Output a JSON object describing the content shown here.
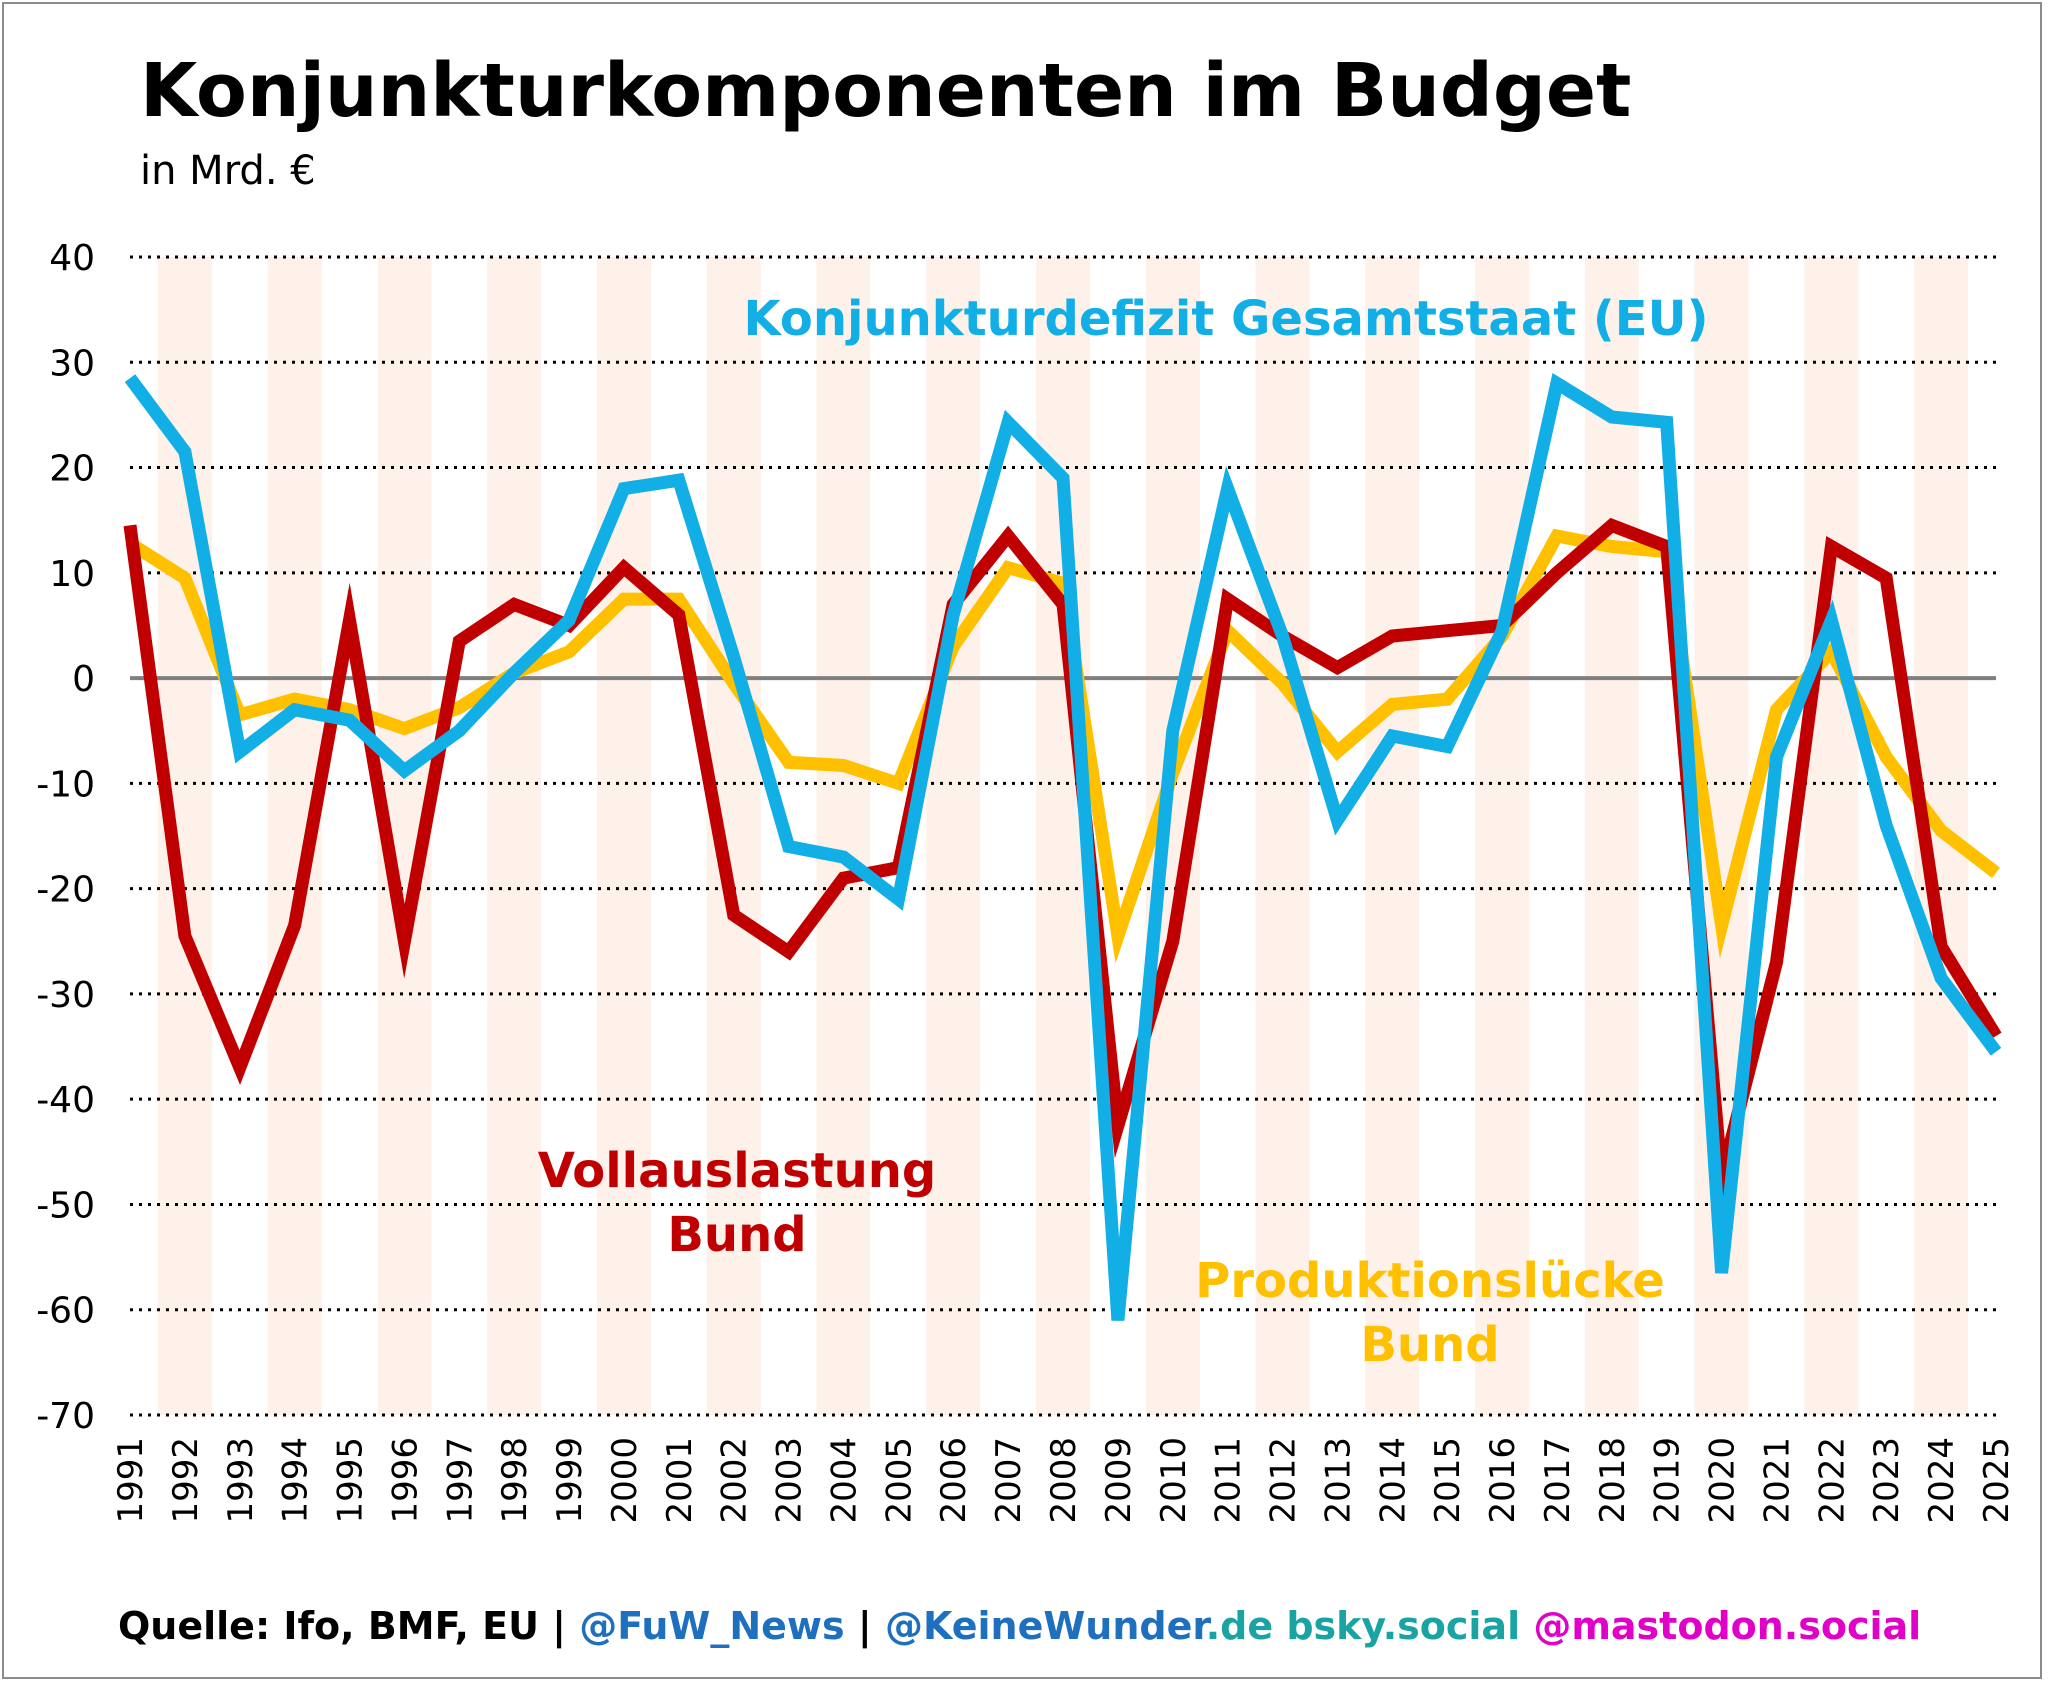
{
  "title": "Konjunkturkomponenten im Budget",
  "subtitle": "in Mrd. €",
  "footer": {
    "source": "Quelle: Ifo, BMF, EU | ",
    "handle1": "@FuW_News",
    "sep": " | ",
    "handle2": "@KeineWunder",
    "domain": ".de",
    "bsky": " bsky.social",
    "mastodon": " @mastodon.social",
    "colors": {
      "source": "#000000",
      "handle": "#1f6fbf",
      "domain": "#1aa3a3",
      "mastodon": "#e000c8"
    }
  },
  "chart_data": {
    "type": "line",
    "title": "Konjunkturkomponenten im Budget",
    "subtitle": "in Mrd. €",
    "xlabel": "",
    "ylabel": "",
    "ylim": [
      -70,
      40
    ],
    "yticks": [
      40,
      30,
      20,
      10,
      0,
      -10,
      -20,
      -30,
      -40,
      -50,
      -60,
      -70
    ],
    "grid": "horizontal dotted",
    "x": [
      "1991",
      "1992",
      "1993",
      "1994",
      "1995",
      "1996",
      "1997",
      "1998",
      "1999",
      "2000",
      "2001",
      "2002",
      "2003",
      "2004",
      "2005",
      "2006",
      "2007",
      "2008",
      "2009",
      "2010",
      "2011",
      "2012",
      "2013",
      "2014",
      "2015",
      "2016",
      "2017",
      "2018",
      "2019",
      "2020",
      "2021",
      "2022",
      "2023",
      "2024",
      "2025"
    ],
    "series": [
      {
        "name": "Produktionslücke\nBund",
        "label_lines": [
          "Produktionslücke",
          "Bund"
        ],
        "color": "#ffc000",
        "values": [
          12.8,
          9.5,
          -3.5,
          -2,
          -3,
          -4.8,
          -2.8,
          0.5,
          2.5,
          7.5,
          7.5,
          -0.5,
          -8,
          -8.3,
          -10,
          3,
          10.5,
          9,
          -24.5,
          -9,
          4.5,
          -0.5,
          -7,
          -2.5,
          -2,
          4,
          13.5,
          12.5,
          12,
          -23.5,
          -3,
          2.5,
          -7.5,
          -14.5,
          -18.5
        ]
      },
      {
        "name": "Vollauslastung\nBund",
        "label_lines": [
          "Vollauslastung",
          "Bund"
        ],
        "color": "#c00000",
        "values": [
          14.5,
          -24.5,
          -37,
          -23.5,
          5.5,
          -25,
          3.5,
          7,
          5,
          10.5,
          6,
          -22.5,
          -26,
          -19,
          -18,
          7,
          13.5,
          7,
          -42.5,
          -25,
          7.5,
          4,
          1,
          4,
          4.5,
          5,
          10,
          14.5,
          12.5,
          -47.5,
          -27,
          12.5,
          9.5,
          -25.5,
          -34
        ]
      },
      {
        "name": "Konjunkturdefizit Gesamtstaat (EU)",
        "label_lines": [
          "Konjunkturdefizit Gesamtstaat (EU)"
        ],
        "color": "#12aee6",
        "values": [
          28.5,
          21.5,
          -7,
          -3,
          -4,
          -8.8,
          -5,
          0.5,
          5.5,
          18,
          18.8,
          2,
          -16,
          -17,
          -21,
          6,
          24.3,
          19,
          -61,
          -5,
          18,
          4,
          -13.5,
          -5.5,
          -6.5,
          4.5,
          28,
          24.8,
          24.3,
          -56.5,
          -7.5,
          5.5,
          -14,
          -28.5,
          -35.5
        ]
      }
    ]
  }
}
